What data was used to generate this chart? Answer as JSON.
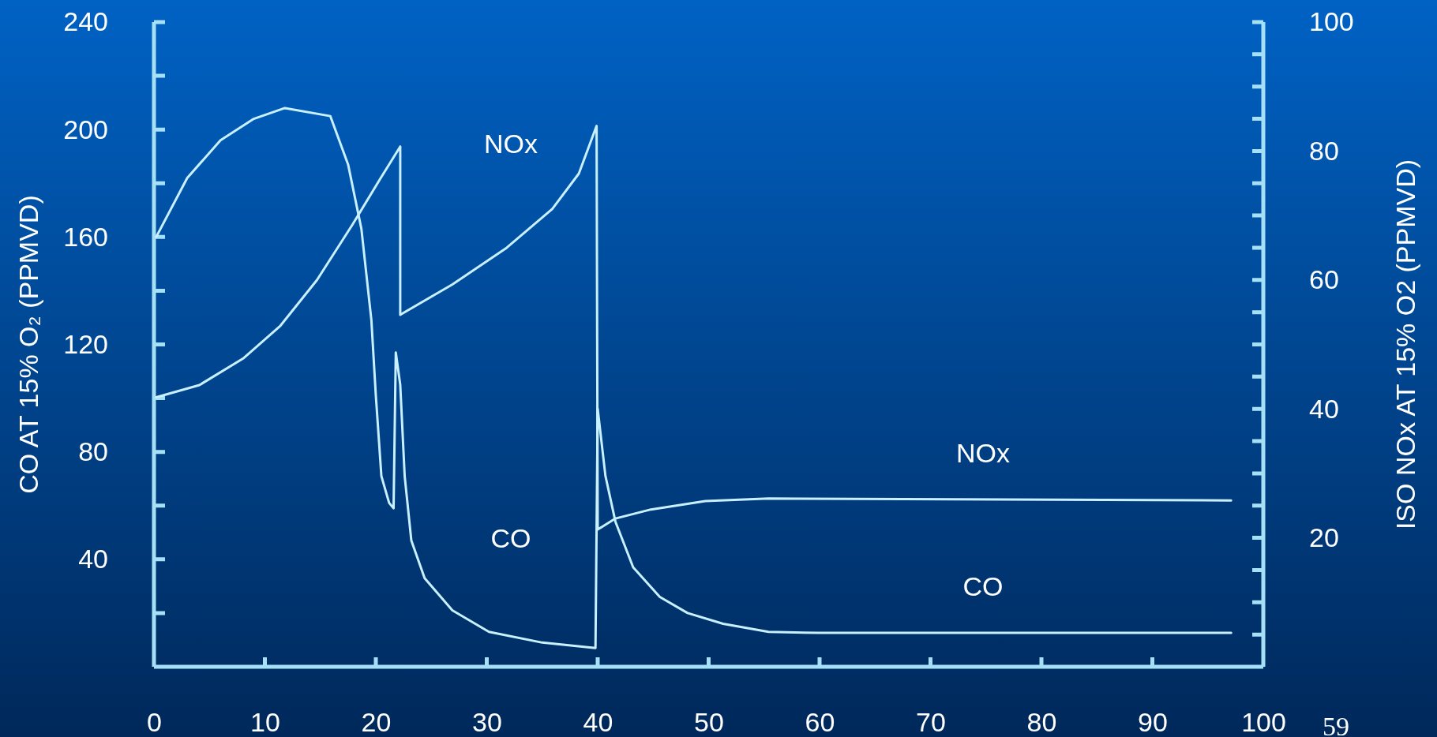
{
  "chart_data": {
    "type": "line",
    "ylabel": "CO AT 15% O₂ (PPMVD)",
    "y2label": "ISO NOx AT 15% O2 (PPMVD)",
    "xlim": [
      0,
      100
    ],
    "xticks": [
      0,
      10,
      20,
      30,
      40,
      50,
      60,
      70,
      80,
      90,
      100
    ],
    "ylim": [
      0,
      240
    ],
    "yticks": [
      40,
      80,
      120,
      160,
      200,
      240
    ],
    "y2lim": [
      0,
      100
    ],
    "y2ticks": [
      20,
      40,
      60,
      80,
      100
    ],
    "series": [
      {
        "color": "#c8f0ff",
        "x": [
          0.2,
          3,
          6,
          9,
          11.8,
          15.9,
          17.5,
          18.7,
          19.6,
          20,
          20.5,
          21.2,
          21.6,
          21.8,
          22.2,
          22.6,
          23.2,
          24.4,
          26.9,
          30.2,
          35,
          39.8,
          40,
          40.7,
          41.6,
          43.2,
          45.6,
          48.1,
          51.3,
          55.4,
          59.9,
          97.1
        ],
        "values": [
          160,
          182,
          196,
          204,
          208,
          205,
          187,
          163,
          129,
          101,
          71,
          61,
          59,
          117,
          105,
          71,
          47,
          33,
          21,
          13,
          9,
          7,
          96,
          71,
          54,
          37,
          26,
          20,
          16,
          13,
          12.6,
          12.6
        ]
      },
      {
        "color": "#c8f0ff",
        "axis": "y2",
        "x": [
          0.2,
          4.1,
          8.1,
          11.4,
          14.7,
          17.9,
          20.4,
          22.2,
          22.2,
          26.9,
          31.8,
          35.9,
          38.3,
          39.9,
          40,
          41.6,
          44.8,
          49.7,
          55.4,
          97.1
        ],
        "values": [
          41.8,
          43.7,
          47.9,
          52.9,
          60,
          68.6,
          75.7,
          80.7,
          54.6,
          59.3,
          65,
          71,
          76.5,
          83.9,
          21.3,
          23,
          24.4,
          25.7,
          26.1,
          25.8
        ]
      }
    ],
    "annotations": [
      "NOx",
      "NOx",
      "CO",
      "CO",
      "59"
    ]
  }
}
